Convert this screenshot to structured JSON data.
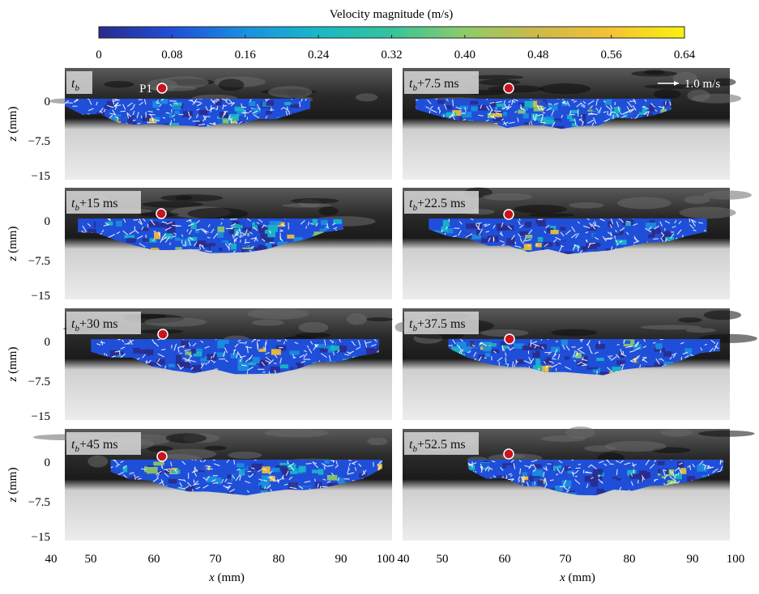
{
  "colorbar": {
    "title": "Velocity magnitude (m/s)",
    "ticks": [
      "0",
      "0.08",
      "0.16",
      "0.24",
      "0.32",
      "0.40",
      "0.48",
      "0.56",
      "0.64"
    ],
    "range": [
      0,
      0.64
    ],
    "colors": [
      "#2a2a8c",
      "#1f4fd8",
      "#1a8fe0",
      "#19b8c8",
      "#35c49a",
      "#8ecb6a",
      "#cdb94a",
      "#f5c233",
      "#f7f20f"
    ]
  },
  "panels": [
    {
      "label_t": "t",
      "label_sub": "b",
      "label_rest": ""
    },
    {
      "label_t": "t",
      "label_sub": "b",
      "label_rest": "+7.5 ms"
    },
    {
      "label_t": "t",
      "label_sub": "b",
      "label_rest": "+15 ms"
    },
    {
      "label_t": "t",
      "label_sub": "b",
      "label_rest": "+22.5 ms"
    },
    {
      "label_t": "t",
      "label_sub": "b",
      "label_rest": "+30 ms"
    },
    {
      "label_t": "t",
      "label_sub": "b",
      "label_rest": "+37.5 ms"
    },
    {
      "label_t": "t",
      "label_sub": "b",
      "label_rest": "+45 ms"
    },
    {
      "label_t": "t",
      "label_sub": "b",
      "label_rest": "+52.5 ms"
    }
  ],
  "probe_label": "P1",
  "reference_vector": "1.0 m/s",
  "axes": {
    "y_label_italic": "z",
    "y_label_unit": " (mm)",
    "y_ticks": [
      "0",
      "−7.5",
      "−15"
    ],
    "x_label_italic": "x",
    "x_label_unit": " (mm)",
    "x_ticks_left": [
      "40",
      "50",
      "60",
      "70",
      "80",
      "90",
      "100"
    ],
    "x_ticks_right": [
      "40",
      "50",
      "60",
      "70",
      "80",
      "90",
      "100"
    ]
  }
}
